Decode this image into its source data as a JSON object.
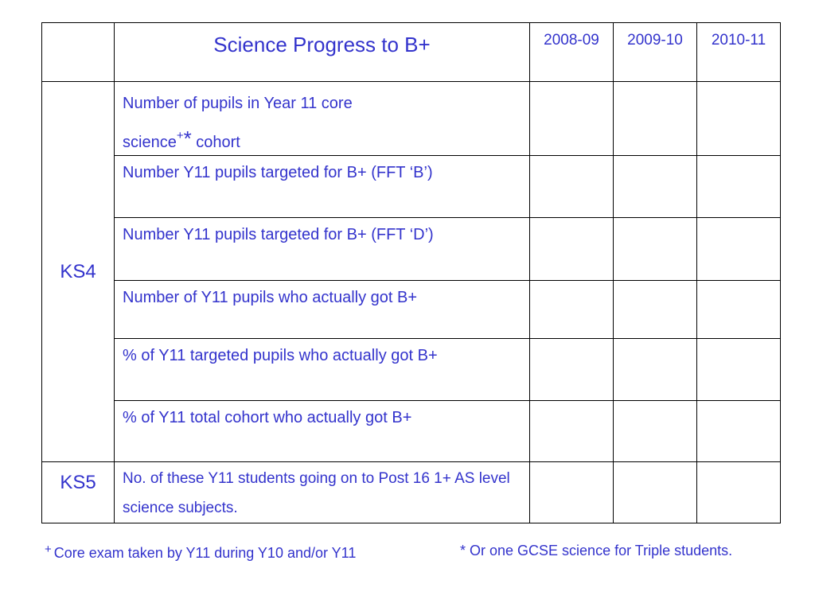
{
  "table": {
    "header": {
      "title": "Science Progress to B+",
      "years": [
        "2008-09",
        "2009-10",
        "2010-11"
      ]
    },
    "groups": [
      {
        "stage": "KS4",
        "rows": [
          {
            "label_part1": "Number of pupils in Year 11 core",
            "label_part2": "science",
            "marks_plus": "+",
            "marks_star": "*",
            "label_part3": " cohort",
            "values": [
              "",
              "",
              ""
            ]
          },
          {
            "label": "Number Y11 pupils targeted for B+ (FFT ‘B’)",
            "values": [
              "",
              "",
              ""
            ]
          },
          {
            "label": "Number Y11 pupils targeted for B+ (FFT ‘D’)",
            "values": [
              "",
              "",
              ""
            ]
          },
          {
            "label": "Number of Y11 pupils who actually got B+",
            "values": [
              "",
              "",
              ""
            ]
          },
          {
            "label": "% of Y11 targeted pupils who actually got B+",
            "values": [
              "",
              "",
              ""
            ]
          },
          {
            "label": "% of Y11 total cohort who actually got B+",
            "values": [
              "",
              "",
              ""
            ]
          }
        ]
      },
      {
        "stage": "KS5",
        "rows": [
          {
            "label": "No. of these Y11 students going on to Post 16 1+ AS level science subjects.",
            "values": [
              "",
              "",
              ""
            ]
          }
        ]
      }
    ]
  },
  "footnotes": {
    "core_exam_mark": "+",
    "core_exam_text": "Core exam taken by Y11 during Y10 and/or Y11",
    "triple_text": "* Or one GCSE science for Triple students."
  },
  "colors": {
    "text": "#3333cc",
    "border": "#000000",
    "background": "#ffffff"
  }
}
